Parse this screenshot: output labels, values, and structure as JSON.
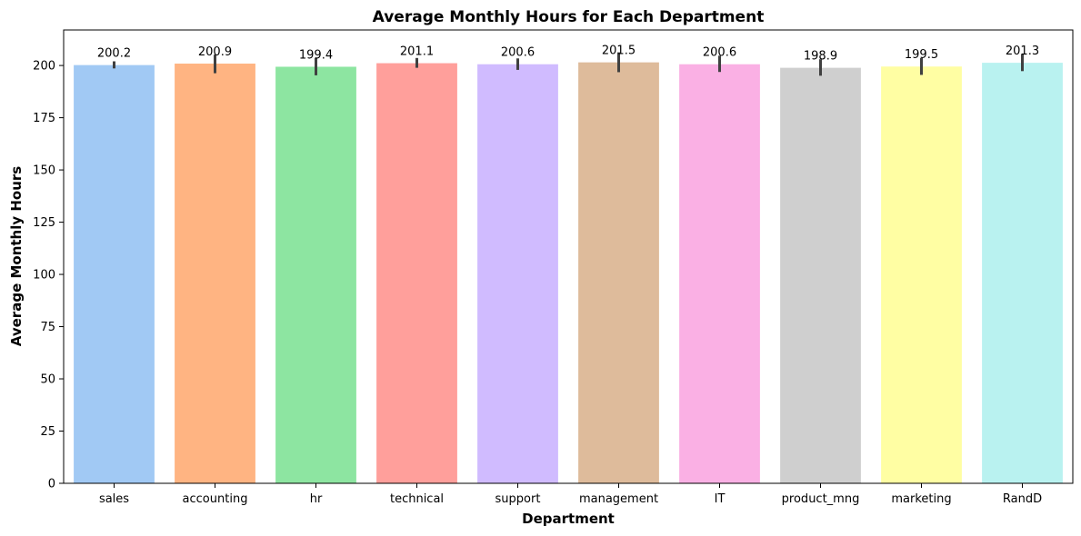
{
  "chart_data": {
    "type": "bar",
    "title": "Average Monthly Hours for Each Department",
    "xlabel": "Department",
    "ylabel": "Average Monthly Hours",
    "ylim": [
      0,
      217
    ],
    "yticks": [
      0,
      25,
      50,
      75,
      100,
      125,
      150,
      175,
      200
    ],
    "grid": false,
    "categories": [
      "sales",
      "accounting",
      "hr",
      "technical",
      "support",
      "management",
      "IT",
      "product_mng",
      "marketing",
      "RandD"
    ],
    "values": [
      200.2,
      200.9,
      199.4,
      201.1,
      200.6,
      201.5,
      200.6,
      198.9,
      199.5,
      201.3
    ],
    "data_labels": [
      "200.2",
      "200.9",
      "199.4",
      "201.1",
      "200.6",
      "201.5",
      "200.6",
      "198.9",
      "199.5",
      "201.3"
    ],
    "error_bars": [
      [
        198.6,
        202.0
      ],
      [
        196.3,
        205.2
      ],
      [
        195.3,
        203.6
      ],
      [
        198.9,
        203.6
      ],
      [
        197.9,
        203.4
      ],
      [
        196.8,
        206.3
      ],
      [
        196.9,
        204.7
      ],
      [
        195.1,
        203.0
      ],
      [
        195.5,
        203.6
      ],
      [
        197.3,
        205.6
      ]
    ],
    "colors": [
      "#a1c9f4",
      "#ffb482",
      "#8de5a1",
      "#ff9f9b",
      "#d0bbff",
      "#debb9b",
      "#fab0e4",
      "#cfcfcf",
      "#fffea3",
      "#b9f2f0"
    ],
    "error_bar_color": "#404040"
  }
}
